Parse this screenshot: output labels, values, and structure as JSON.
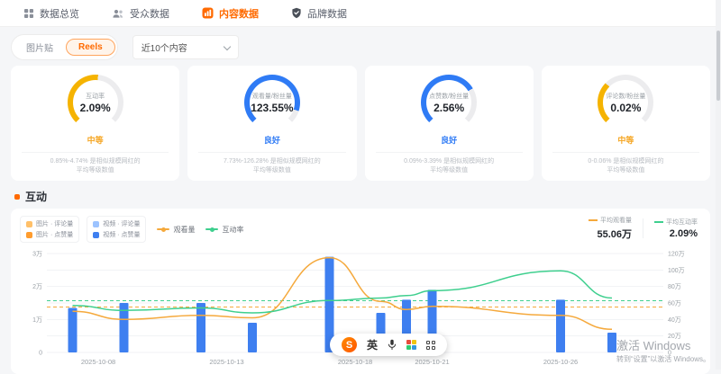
{
  "nav": {
    "tabs": [
      {
        "label": "数据总览",
        "icon": "overview-grid-icon",
        "active": false
      },
      {
        "label": "受众数据",
        "icon": "audience-people-icon",
        "active": false
      },
      {
        "label": "内容数据",
        "icon": "content-chart-icon",
        "active": true
      },
      {
        "label": "品牌数据",
        "icon": "brand-shield-icon",
        "active": false
      }
    ]
  },
  "filters": {
    "toggle": {
      "options": [
        "图片贴",
        "Reels"
      ],
      "selected": "Reels"
    },
    "range_select": {
      "value": "近10个内容"
    }
  },
  "metric_cards": [
    {
      "label": "互动率",
      "value": "2.09%",
      "rating": "中等",
      "rating_color": "#f5a623",
      "gauge_percent": 52,
      "gauge_color": "#f5b301",
      "note_line1": "0.85%-4.74% 是相似规模网红的",
      "note_line2": "平均等级数值"
    },
    {
      "label": "观看量/粉丝量",
      "value": "123.55%",
      "rating": "良好",
      "rating_color": "#2f7bf5",
      "gauge_percent": 90,
      "gauge_color": "#2f7bf5",
      "note_line1": "7.73%-126.28% 是相似规模网红的",
      "note_line2": "平均等级数值"
    },
    {
      "label": "点赞数/粉丝量",
      "value": "2.56%",
      "rating": "良好",
      "rating_color": "#2f7bf5",
      "gauge_percent": 72,
      "gauge_color": "#2f7bf5",
      "note_line1": "0.09%-3.39% 是相似规模网红的",
      "note_line2": "平均等级数值"
    },
    {
      "label": "评论数/粉丝量",
      "value": "0.02%",
      "rating": "中等",
      "rating_color": "#f5a623",
      "gauge_percent": 33,
      "gauge_color": "#f5b301",
      "note_line1": "0-0.06% 是相似规模网红的",
      "note_line2": "平均等级数值"
    }
  ],
  "engagement": {
    "title": "互动",
    "legend": {
      "image_group": [
        {
          "label": "图片 · 评论量",
          "color": "#ffc069"
        },
        {
          "label": "图片 · 点赞量",
          "color": "#ff9c2e"
        }
      ],
      "video_group": [
        {
          "label": "视频 · 评论量",
          "color": "#9cc3ff"
        },
        {
          "label": "视频 · 点赞量",
          "color": "#3e7ff0"
        }
      ],
      "lines": [
        {
          "label": "观看量",
          "color": "#f5a93c"
        },
        {
          "label": "互动率",
          "color": "#3ecf8e"
        }
      ]
    },
    "stats": [
      {
        "label": "平均观看量",
        "value": "55.06万",
        "color": "#f5a93c"
      },
      {
        "label": "平均互动率",
        "value": "2.09%",
        "color": "#3ecf8e"
      }
    ]
  },
  "chart_data": {
    "type": "bar+line",
    "x_ticks": [
      {
        "date": "2025-10-08",
        "label": "2025-10-08"
      },
      {
        "date": "2025-10-13",
        "label": "2025-10-13"
      },
      {
        "date": "2025-10-18",
        "label": "2025-10-18"
      },
      {
        "date": "2025-10-21",
        "label": "2025-10-21"
      },
      {
        "date": "2025-10-26",
        "label": "2025-10-26"
      }
    ],
    "left_axis": {
      "ticks": [
        "0",
        "1万",
        "2万",
        "3万"
      ],
      "max": 3,
      "unit": "万"
    },
    "right_axis": {
      "ticks": [
        "0",
        "20万",
        "40万",
        "60万",
        "80万",
        "100万",
        "120万"
      ],
      "max": 120,
      "unit": "万"
    },
    "rate_axis_max_pct": 4,
    "points": [
      {
        "date": "2025-10-07",
        "engagement_wan": 1.35,
        "views_wan": 50,
        "rate_pct": 1.9
      },
      {
        "date": "2025-10-09",
        "engagement_wan": 1.5,
        "views_wan": 40,
        "rate_pct": 1.7
      },
      {
        "date": "2025-10-12",
        "engagement_wan": 1.5,
        "views_wan": 45,
        "rate_pct": 1.8
      },
      {
        "date": "2025-10-14",
        "engagement_wan": 0.9,
        "views_wan": 42,
        "rate_pct": 1.6
      },
      {
        "date": "2025-10-17",
        "engagement_wan": 2.9,
        "views_wan": 115,
        "rate_pct": 2.1
      },
      {
        "date": "2025-10-19",
        "engagement_wan": 1.2,
        "views_wan": 62,
        "rate_pct": 2.2
      },
      {
        "date": "2025-10-20",
        "engagement_wan": 1.6,
        "views_wan": 52,
        "rate_pct": 2.3
      },
      {
        "date": "2025-10-21",
        "engagement_wan": 1.9,
        "views_wan": 56,
        "rate_pct": 2.5
      },
      {
        "date": "2025-10-26",
        "engagement_wan": 1.6,
        "views_wan": 45,
        "rate_pct": 3.3
      },
      {
        "date": "2025-10-28",
        "engagement_wan": 0.6,
        "views_wan": 28,
        "rate_pct": 2.2
      }
    ],
    "avg_views_wan": 55.06,
    "avg_rate_pct": 2.09,
    "colors": {
      "bar": "#3e7ff0",
      "views_line": "#f5a93c",
      "rate_line": "#3ecf8e"
    },
    "series_names": {
      "bars": "互动量",
      "views": "观看量",
      "rate": "互动率"
    }
  },
  "ime_toolbar": {
    "logo": "S",
    "mode": "英",
    "icons": [
      "mic-icon",
      "emoji-palette-icon",
      "apps-grid-icon"
    ]
  },
  "watermark": {
    "line1": "激活 Windows",
    "line2": "转到“设置”以激活 Windows。"
  }
}
